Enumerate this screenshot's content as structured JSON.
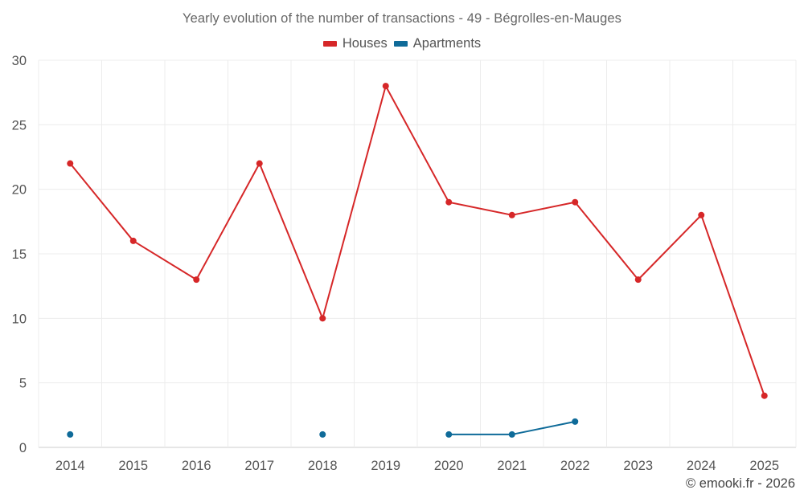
{
  "chart_data": {
    "type": "line",
    "title": "Yearly evolution of the number of transactions - 49 - Bégrolles-en-Mauges",
    "xlabel": "",
    "ylabel": "",
    "categories": [
      "2014",
      "2015",
      "2016",
      "2017",
      "2018",
      "2019",
      "2020",
      "2021",
      "2022",
      "2023",
      "2024",
      "2025"
    ],
    "ylim": [
      0,
      30
    ],
    "yticks": [
      0,
      5,
      10,
      15,
      20,
      25,
      30
    ],
    "grid": true,
    "legend_position": "top-center",
    "series": [
      {
        "name": "Houses",
        "color": "#d62728",
        "values": [
          22,
          16,
          13,
          22,
          10,
          28,
          19,
          18,
          19,
          13,
          18,
          4
        ]
      },
      {
        "name": "Apartments",
        "color": "#0f6b99",
        "values": [
          1,
          null,
          null,
          null,
          1,
          null,
          1,
          1,
          2,
          null,
          null,
          null
        ]
      }
    ]
  },
  "credit": "© emooki.fr - 2026"
}
